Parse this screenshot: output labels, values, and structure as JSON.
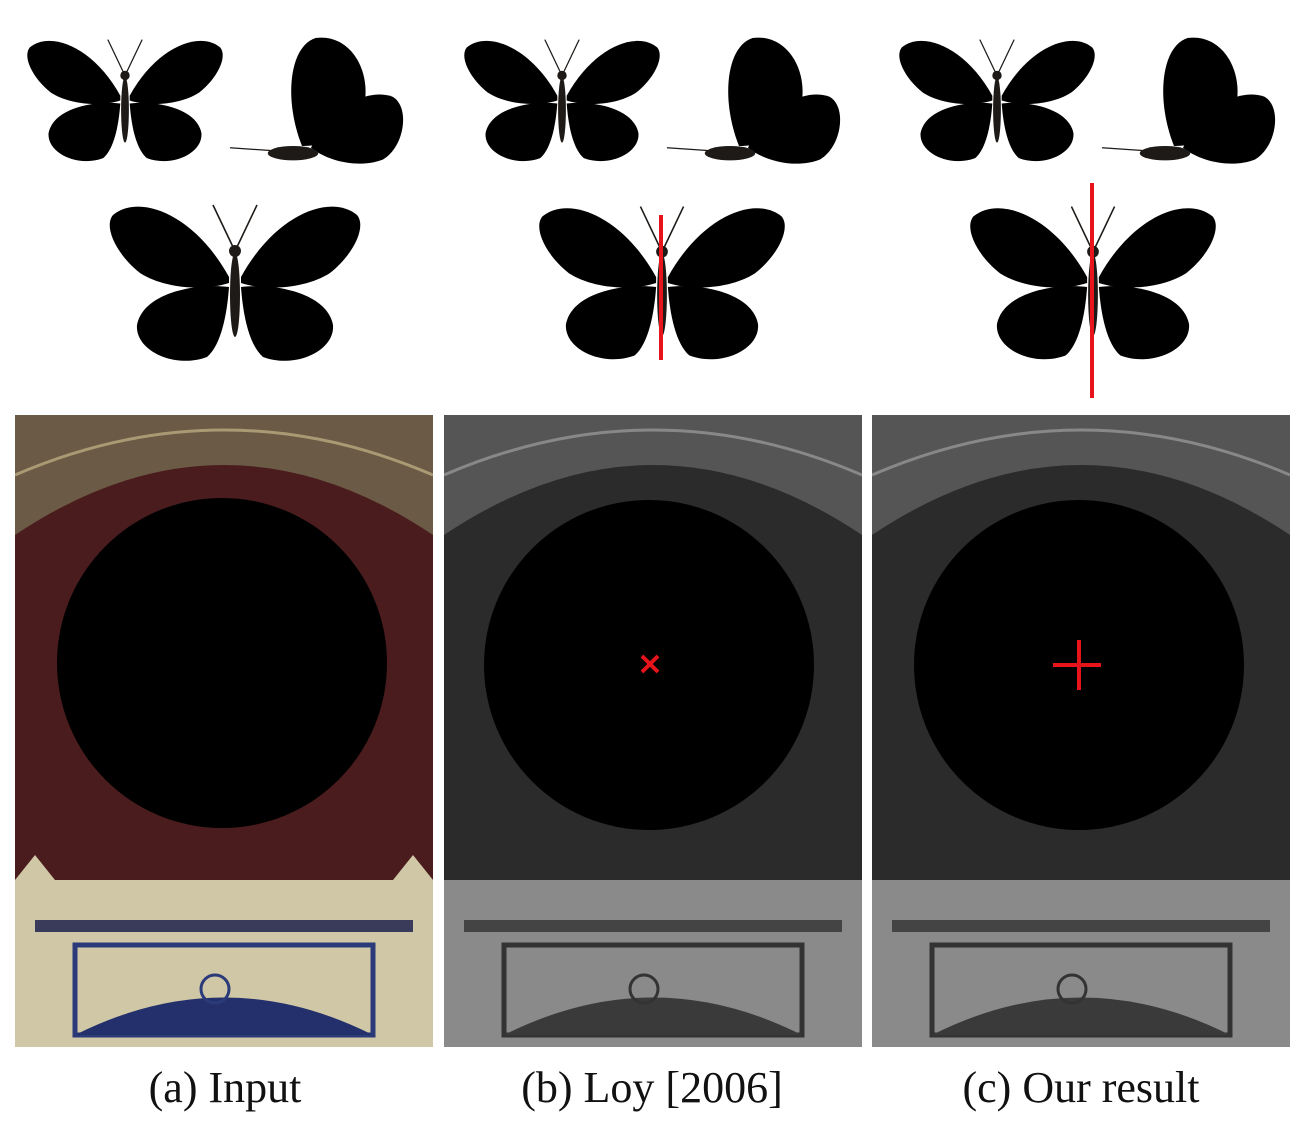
{
  "captions": {
    "a": "(a) Input",
    "b": "(b) Loy [2006]",
    "c": "(c) Our result"
  },
  "colors": {
    "monarch_orange": "#f08a1c",
    "wing_black": "#1e1a17",
    "annotation_red": "#e8141b",
    "glass_blue": "#2d4fd6",
    "wall_maroon": "#4a1c1e",
    "wall_cream": "#cfc7a6"
  }
}
